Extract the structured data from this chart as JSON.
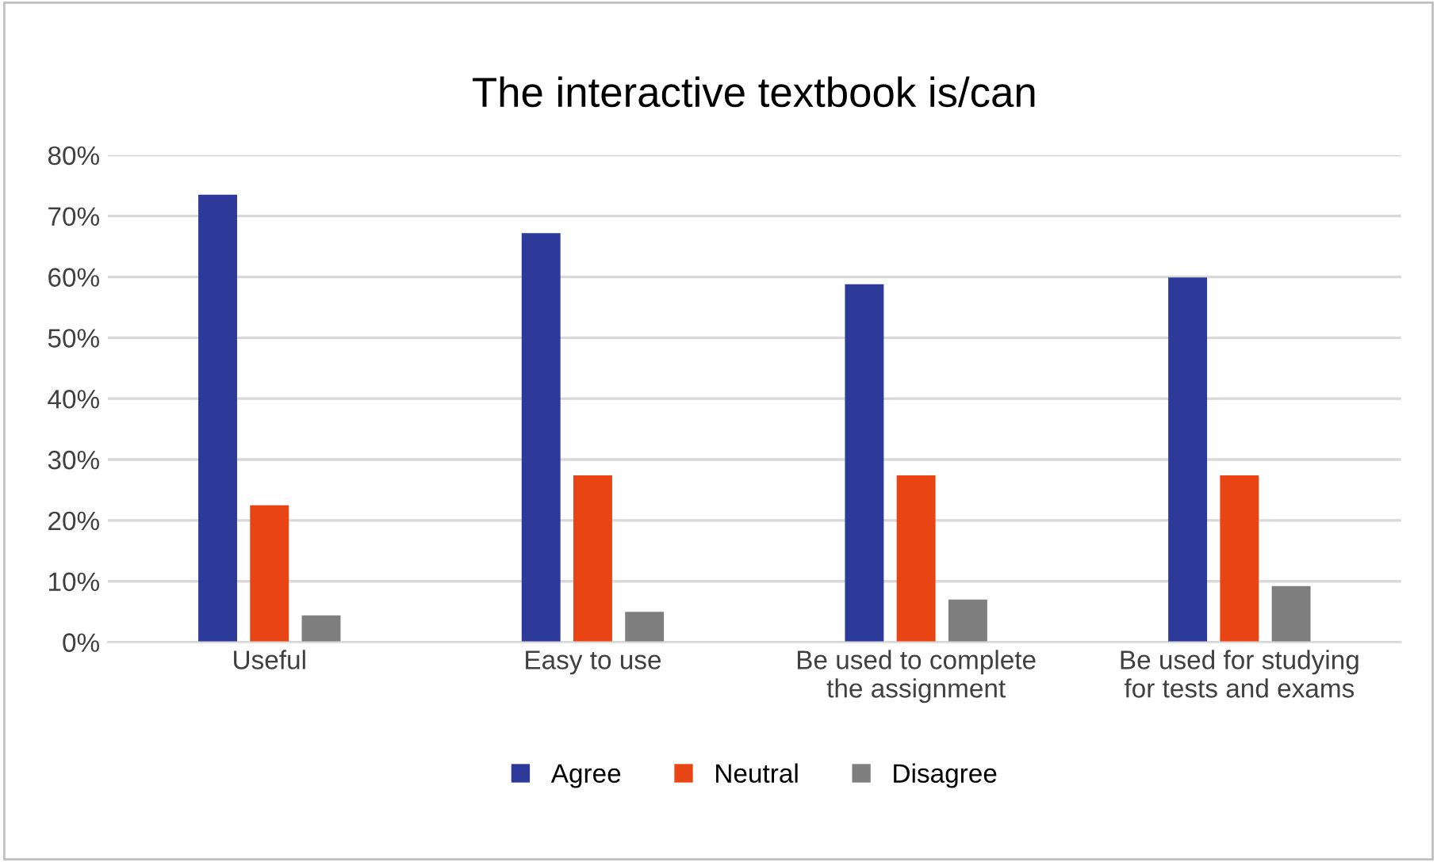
{
  "chart_data": {
    "type": "bar",
    "title": "The interactive textbook is/can",
    "categories": [
      "Useful",
      "Easy to use",
      "Be used to complete\nthe assignment",
      "Be used for studying\nfor tests and exams"
    ],
    "series": [
      {
        "name": "Agree",
        "color": "#2e3a9a",
        "values": [
          73.5,
          67.2,
          58.8,
          59.9
        ]
      },
      {
        "name": "Neutral",
        "color": "#e84414",
        "values": [
          22.5,
          27.4,
          27.4,
          27.4
        ]
      },
      {
        "name": "Disagree",
        "color": "#7f7f7f",
        "values": [
          4.4,
          5.0,
          7.0,
          9.2
        ]
      }
    ],
    "ylim": [
      0,
      80
    ],
    "yticks": [
      {
        "value": 0,
        "label": "0%"
      },
      {
        "value": 10,
        "label": "10%"
      },
      {
        "value": 20,
        "label": "20%"
      },
      {
        "value": 30,
        "label": "30%"
      },
      {
        "value": 40,
        "label": "40%"
      },
      {
        "value": 50,
        "label": "50%"
      },
      {
        "value": 60,
        "label": "60%"
      },
      {
        "value": 70,
        "label": "70%"
      },
      {
        "value": 80,
        "label": "80%"
      }
    ],
    "grid": "y",
    "legend": "bottom"
  }
}
